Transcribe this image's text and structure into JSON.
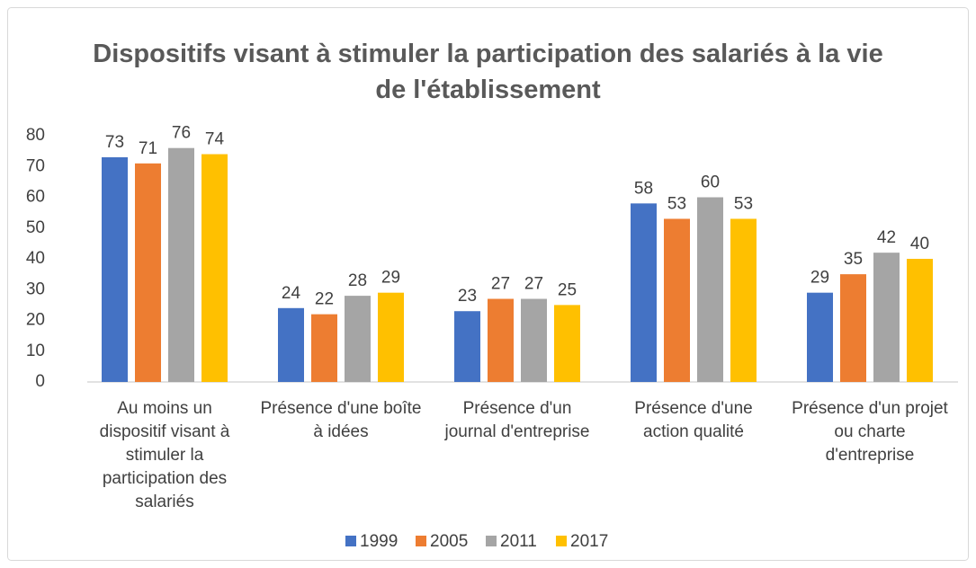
{
  "chart_data": {
    "type": "bar",
    "title": "Dispositifs visant à stimuler la participation des salariés à la vie de l'établissement",
    "categories": [
      "Au moins un dispositif visant à stimuler la participation des salariés",
      "Présence d'une boîte à idées",
      "Présence d'un journal d'entreprise",
      "Présence d'une action qualité",
      "Présence d'un projet ou charte d'entreprise"
    ],
    "series": [
      {
        "name": "1999",
        "color": "#4472c4",
        "values": [
          73,
          24,
          23,
          58,
          29
        ]
      },
      {
        "name": "2005",
        "color": "#ed7d31",
        "values": [
          71,
          22,
          27,
          53,
          35
        ]
      },
      {
        "name": "2011",
        "color": "#a5a5a5",
        "values": [
          76,
          28,
          27,
          60,
          42
        ]
      },
      {
        "name": "2017",
        "color": "#ffc000",
        "values": [
          74,
          29,
          25,
          53,
          40
        ]
      }
    ],
    "ylim": [
      0,
      80
    ],
    "yticks": [
      0,
      10,
      20,
      30,
      40,
      50,
      60,
      70,
      80
    ],
    "grid": false,
    "legend": "bottom"
  }
}
